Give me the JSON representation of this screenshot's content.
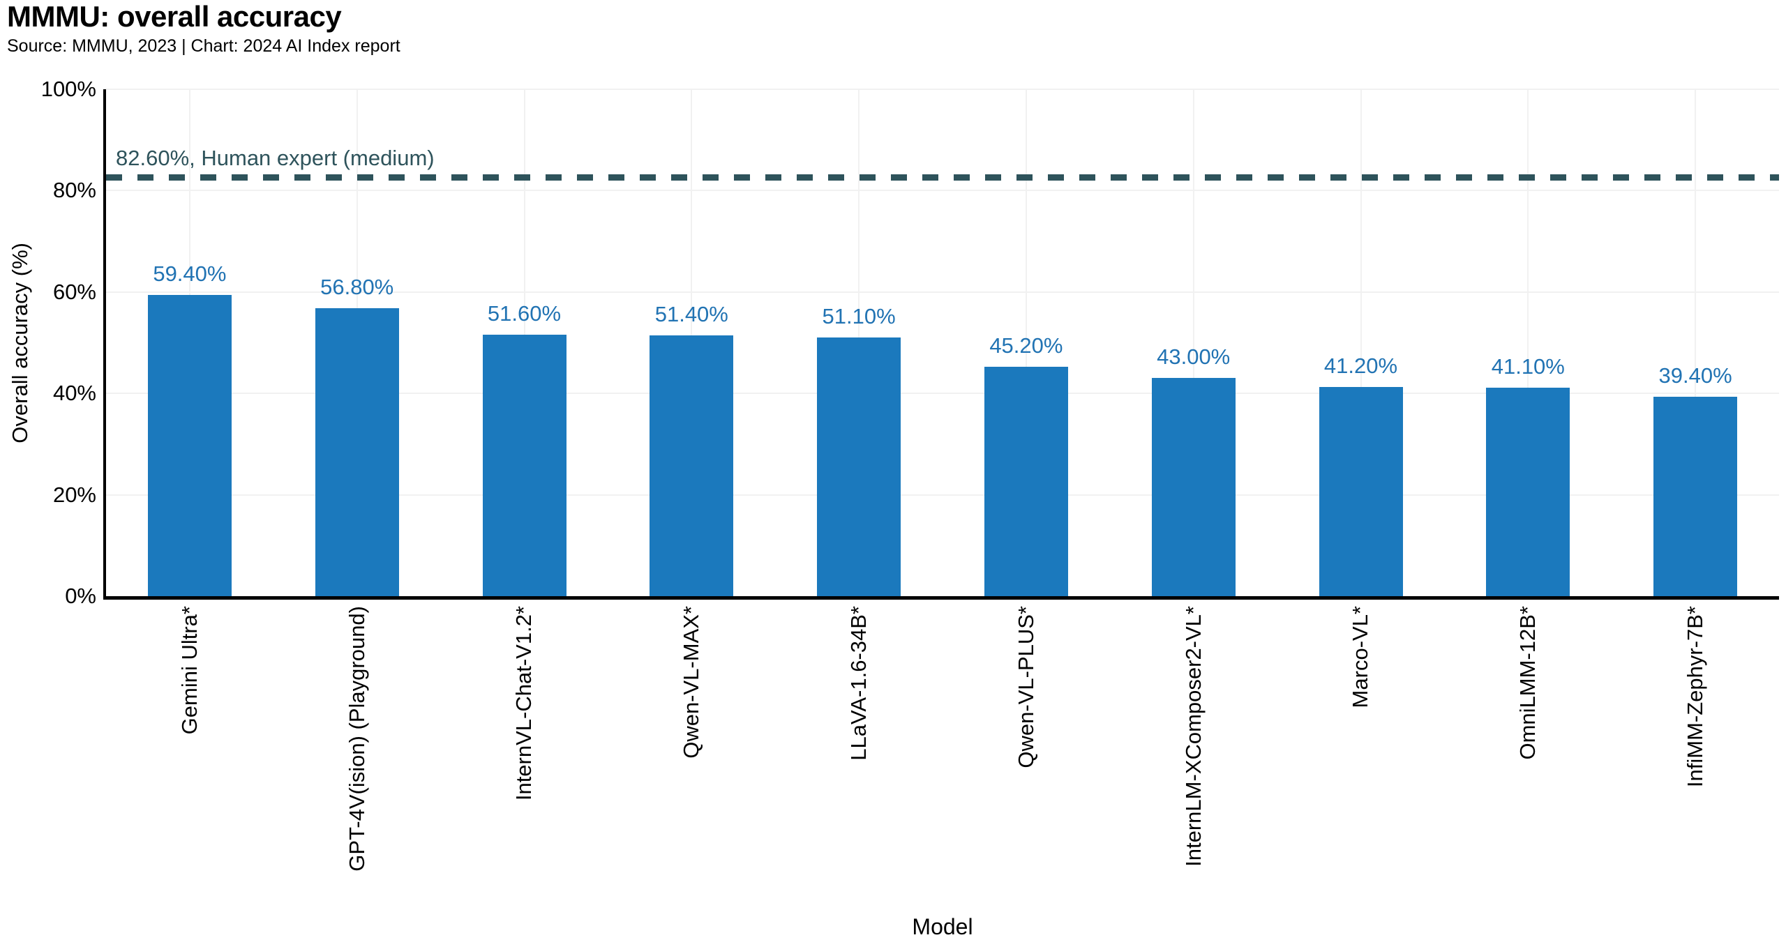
{
  "header": {
    "title": "MMMU: overall accuracy",
    "source_line": "Source: MMMU, 2023 | Chart: 2024 AI Index report"
  },
  "chart_data": {
    "type": "bar",
    "title": "MMMU: overall accuracy",
    "xlabel": "Model",
    "ylabel": "Overall accuracy (%)",
    "ylim": [
      0,
      100
    ],
    "grid": true,
    "legend": "none",
    "categories": [
      "Gemini Ultra*",
      "GPT-4V(ision) (Playground)",
      "InternVL-Chat-V1.2*",
      "Qwen-VL-MAX*",
      "LLaVA-1.6-34B*",
      "Qwen-VL-PLUS*",
      "InternLM-XComposer2-VL*",
      "Marco-VL*",
      "OmniLMM-12B*",
      "InfiMM-Zephyr-7B*"
    ],
    "values": [
      59.4,
      56.8,
      51.6,
      51.4,
      51.1,
      45.2,
      43.0,
      41.2,
      41.1,
      39.4
    ],
    "value_labels": [
      "59.40%",
      "56.80%",
      "51.60%",
      "51.40%",
      "51.10%",
      "45.20%",
      "43.00%",
      "41.20%",
      "41.10%",
      "39.40%"
    ],
    "y_ticks": [
      {
        "value": 0,
        "label": "0%"
      },
      {
        "value": 20,
        "label": "20%"
      },
      {
        "value": 40,
        "label": "40%"
      },
      {
        "value": 60,
        "label": "60%"
      },
      {
        "value": 80,
        "label": "80%"
      },
      {
        "value": 100,
        "label": "100%"
      }
    ],
    "reference_line": {
      "value": 82.6,
      "label": "82.60%, Human expert (medium)"
    },
    "colors": {
      "bar": "#1b79bd",
      "value_label": "#2173b3",
      "reference": "#2e535b",
      "grid": "#f1f1f1",
      "axis": "#000000"
    }
  }
}
